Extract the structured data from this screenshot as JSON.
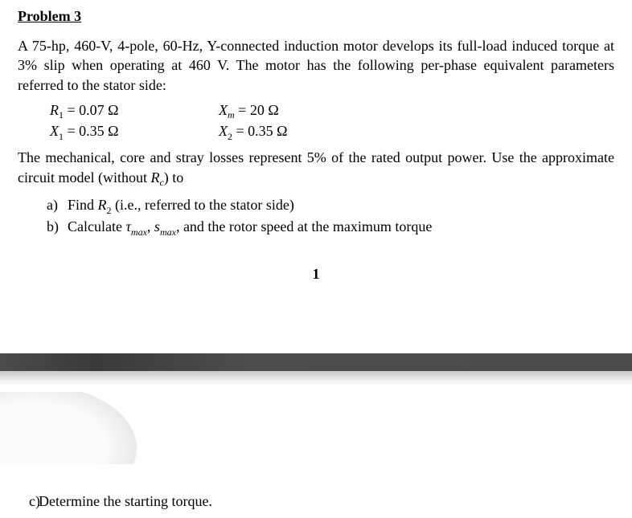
{
  "heading": "Problem 3",
  "intro": "A 75-hp, 460-V, 4-pole, 60-Hz, Y-connected induction motor develops its full-load induced torque at 3% slip when operating at 460 V. The motor has the following per-phase equivalent parameters referred to the stator side:",
  "params": {
    "R1_value": "0.07 Ω",
    "X1_value": "0.35 Ω",
    "Xm_value": "20 Ω",
    "X2_value": "0.35 Ω"
  },
  "losses_text_prefix": "The mechanical, core and stray losses represent 5% of the rated output power. Use the approximate circuit model (without ",
  "losses_text_suffix": ") to",
  "q_a_prefix": "Find ",
  "q_a_suffix": " (i.e., referred to the stator side)",
  "q_b_prefix": "Calculate ",
  "q_b_mid": ", ",
  "q_b_suffix": ", and the rotor speed at the maximum torque",
  "pgnum": "1",
  "q_c": "Determine the starting torque.",
  "colors": {
    "text": "#000000",
    "background": "#ffffff",
    "divider_dark": "#4a4a4a",
    "divider_light": "#e6e6e6"
  },
  "typography": {
    "family": "Times New Roman",
    "body_fontsize_pt": 13,
    "heading_fontsize_pt": 13,
    "heading_weight": "bold"
  },
  "labels": {
    "a": "a)",
    "b": "b)",
    "c": "c)"
  }
}
